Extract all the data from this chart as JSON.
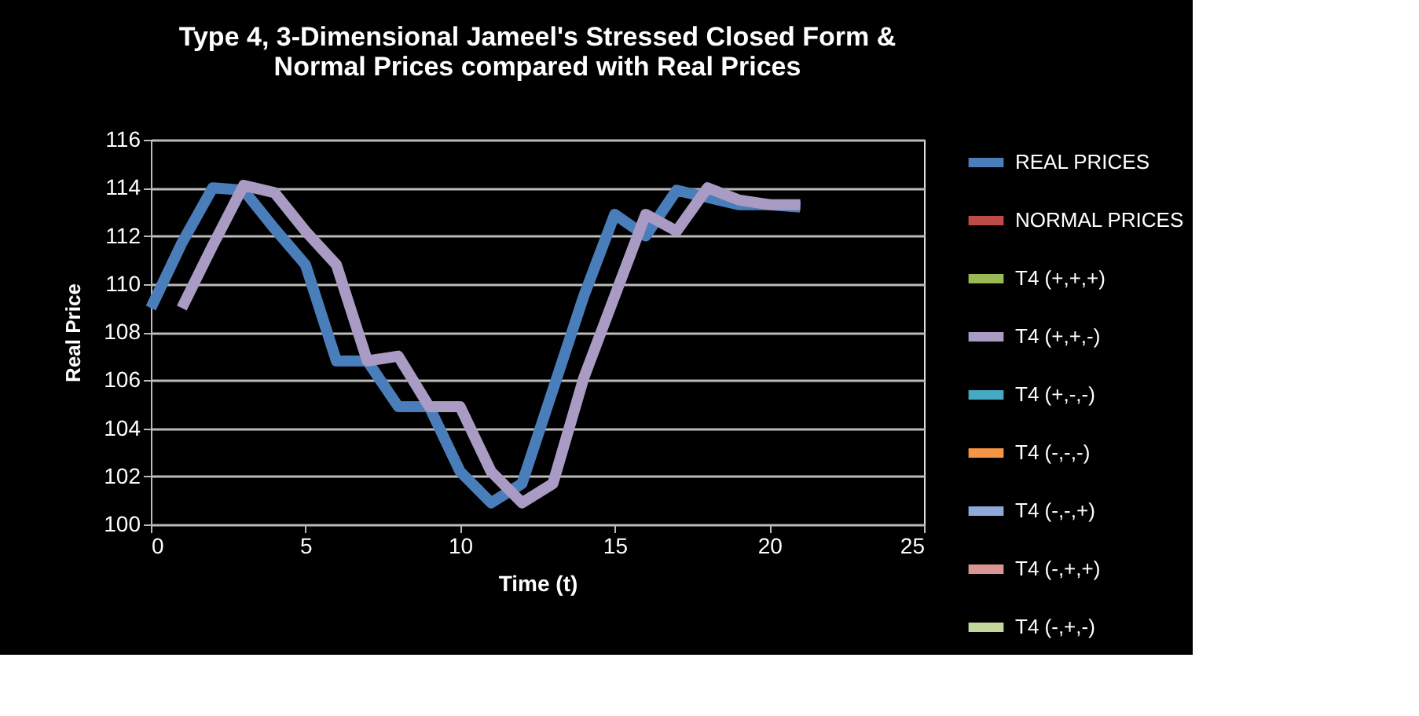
{
  "chart_data": {
    "type": "line",
    "title": "Type 4, 3-Dimensional Jameel's Stressed Closed Form & Normal Prices compared with Real Prices",
    "xlabel": "Time (t)",
    "ylabel": "Real Price",
    "x": [
      0,
      1,
      2,
      3,
      4,
      5,
      6,
      7,
      8,
      9,
      10,
      11,
      12,
      13,
      14,
      15,
      16,
      17,
      18,
      19,
      20,
      21
    ],
    "series": [
      {
        "name": "REAL PRICES",
        "color": "#4a7ebb",
        "values": [
          109.0,
          111.7,
          114.0,
          113.9,
          112.3,
          110.8,
          106.8,
          106.8,
          104.9,
          104.9,
          102.2,
          100.9,
          101.7,
          105.6,
          109.5,
          112.9,
          112.0,
          113.9,
          113.6,
          113.3,
          113.3,
          113.2
        ]
      },
      {
        "name": "NORMAL PRICES",
        "color": "#be4b48",
        "values": [
          null,
          null,
          null,
          null,
          null,
          null,
          null,
          null,
          null,
          null,
          null,
          null,
          null,
          null,
          null,
          null,
          null,
          null,
          null,
          null,
          null,
          null
        ]
      },
      {
        "name": "T4 (+,+,+)",
        "color": "#98b954",
        "values": [
          null,
          null,
          null,
          null,
          null,
          null,
          null,
          null,
          null,
          null,
          null,
          null,
          null,
          null,
          null,
          null,
          null,
          null,
          null,
          null,
          null,
          null
        ]
      },
      {
        "name": "T4 (+,+,-)",
        "color": "#a99bc4",
        "values": [
          null,
          109.0,
          111.6,
          114.1,
          113.8,
          112.2,
          110.8,
          106.8,
          107.0,
          104.9,
          104.9,
          102.2,
          100.9,
          101.7,
          106.1,
          109.5,
          112.9,
          112.2,
          114.0,
          113.5,
          113.3,
          113.3
        ]
      },
      {
        "name": "T4  (+,-,-)",
        "color": "#46aac5",
        "values": [
          null,
          null,
          null,
          null,
          null,
          null,
          null,
          null,
          null,
          null,
          null,
          null,
          null,
          null,
          null,
          null,
          null,
          null,
          null,
          null,
          null,
          null
        ]
      },
      {
        "name": "T4  (-,-,-)",
        "color": "#f69546",
        "values": [
          null,
          null,
          null,
          null,
          null,
          null,
          null,
          null,
          null,
          null,
          null,
          null,
          null,
          null,
          null,
          null,
          null,
          null,
          null,
          null,
          null,
          null
        ]
      },
      {
        "name": "T4  (-,-,+)",
        "color": "#8ea9d8",
        "values": [
          null,
          null,
          null,
          null,
          null,
          null,
          null,
          null,
          null,
          null,
          null,
          null,
          null,
          null,
          null,
          null,
          null,
          null,
          null,
          null,
          null,
          null
        ]
      },
      {
        "name": "T4  (-,+,+)",
        "color": "#d99694",
        "values": [
          null,
          null,
          null,
          null,
          null,
          null,
          null,
          null,
          null,
          null,
          null,
          null,
          null,
          null,
          null,
          null,
          null,
          null,
          null,
          null,
          null,
          null
        ]
      },
      {
        "name": "T4 (-,+,-)",
        "color": "#c3d69b",
        "values": [
          null,
          null,
          null,
          null,
          null,
          null,
          null,
          null,
          null,
          null,
          null,
          null,
          null,
          null,
          null,
          null,
          null,
          null,
          null,
          null,
          null,
          null
        ]
      }
    ],
    "xlim": [
      0,
      25
    ],
    "xticks": [
      0,
      5,
      10,
      15,
      20,
      25
    ],
    "ylim": [
      100,
      116
    ],
    "yticks": [
      100,
      102,
      104,
      106,
      108,
      110,
      112,
      114,
      116
    ],
    "grid": "y",
    "legend": "right",
    "line_style": "solid",
    "marker": "none"
  }
}
